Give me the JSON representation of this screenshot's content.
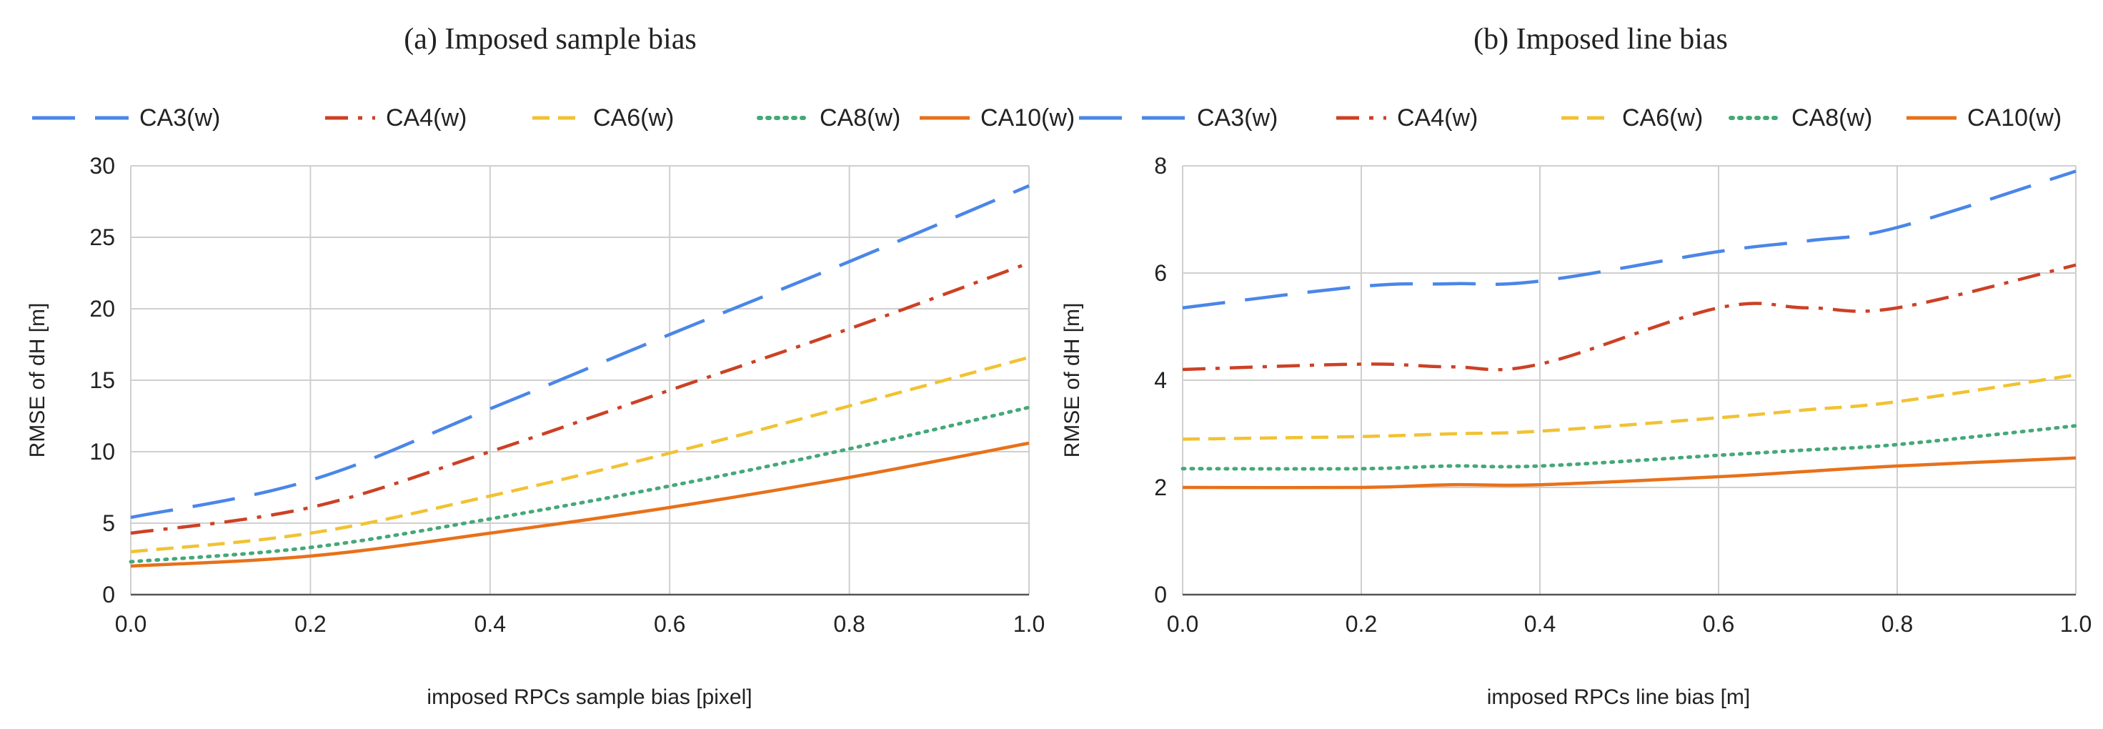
{
  "chart_data": [
    {
      "type": "line",
      "title": "(a) Imposed sample bias",
      "xlabel": "imposed RPCs sample bias [pixel]",
      "ylabel": "RMSE of dH [m]",
      "xlim": [
        0,
        1.0
      ],
      "ylim": [
        0,
        30
      ],
      "xticks": [
        "0.0",
        "0.2",
        "0.4",
        "0.6",
        "0.8",
        "1.0"
      ],
      "yticks": [
        "0",
        "5",
        "10",
        "15",
        "20",
        "25",
        "30"
      ],
      "grid": true,
      "legend_position": "top",
      "x": [
        0.0,
        0.2,
        0.4,
        0.6,
        0.8,
        1.0
      ],
      "series": [
        {
          "name": "CA3(w)",
          "values": [
            5.4,
            8.0,
            13.0,
            18.2,
            23.3,
            28.6
          ]
        },
        {
          "name": "CA4(w)",
          "values": [
            4.3,
            6.1,
            10.0,
            14.3,
            18.6,
            23.2
          ]
        },
        {
          "name": "CA6(w)",
          "values": [
            3.0,
            4.3,
            6.9,
            9.9,
            13.2,
            16.6
          ]
        },
        {
          "name": "CA8(w)",
          "values": [
            2.3,
            3.3,
            5.3,
            7.6,
            10.2,
            13.1
          ]
        },
        {
          "name": "CA10(w)",
          "values": [
            2.0,
            2.7,
            4.3,
            6.1,
            8.2,
            10.6
          ]
        }
      ]
    },
    {
      "type": "line",
      "title": "(b) Imposed line bias",
      "xlabel": "imposed RPCs line bias [m]",
      "ylabel": "RMSE of dH [m]",
      "xlim": [
        0,
        1.0
      ],
      "ylim": [
        0,
        8
      ],
      "xticks": [
        "0.0",
        "0.2",
        "0.4",
        "0.6",
        "0.8",
        "1.0"
      ],
      "yticks": [
        "0",
        "2",
        "4",
        "6",
        "8"
      ],
      "grid": true,
      "legend_position": "top",
      "x": [
        0.0,
        0.2,
        0.3,
        0.4,
        0.6,
        0.7,
        0.8,
        1.0
      ],
      "series": [
        {
          "name": "CA3(w)",
          "values": [
            5.35,
            5.75,
            5.8,
            5.85,
            6.4,
            6.6,
            6.85,
            7.9
          ]
        },
        {
          "name": "CA4(w)",
          "values": [
            4.2,
            4.3,
            4.25,
            4.3,
            5.35,
            5.35,
            5.35,
            6.15
          ]
        },
        {
          "name": "CA6(w)",
          "values": [
            2.9,
            2.95,
            3.0,
            3.05,
            3.3,
            3.45,
            3.6,
            4.1
          ]
        },
        {
          "name": "CA8(w)",
          "values": [
            2.35,
            2.35,
            2.4,
            2.4,
            2.6,
            2.7,
            2.8,
            3.15
          ]
        },
        {
          "name": "CA10(w)",
          "values": [
            2.0,
            2.0,
            2.05,
            2.05,
            2.2,
            2.3,
            2.4,
            2.55
          ]
        }
      ]
    }
  ],
  "series_styles": [
    {
      "color": "#4a86e8",
      "dash": "60,28"
    },
    {
      "color": "#cc4125",
      "dash": "32,14,6,14"
    },
    {
      "color": "#f1c232",
      "dash": "24,12"
    },
    {
      "color": "#45a878",
      "dash": "3,9"
    },
    {
      "color": "#e8711a",
      "dash": ""
    }
  ],
  "grid_color": "#cfcfcf"
}
